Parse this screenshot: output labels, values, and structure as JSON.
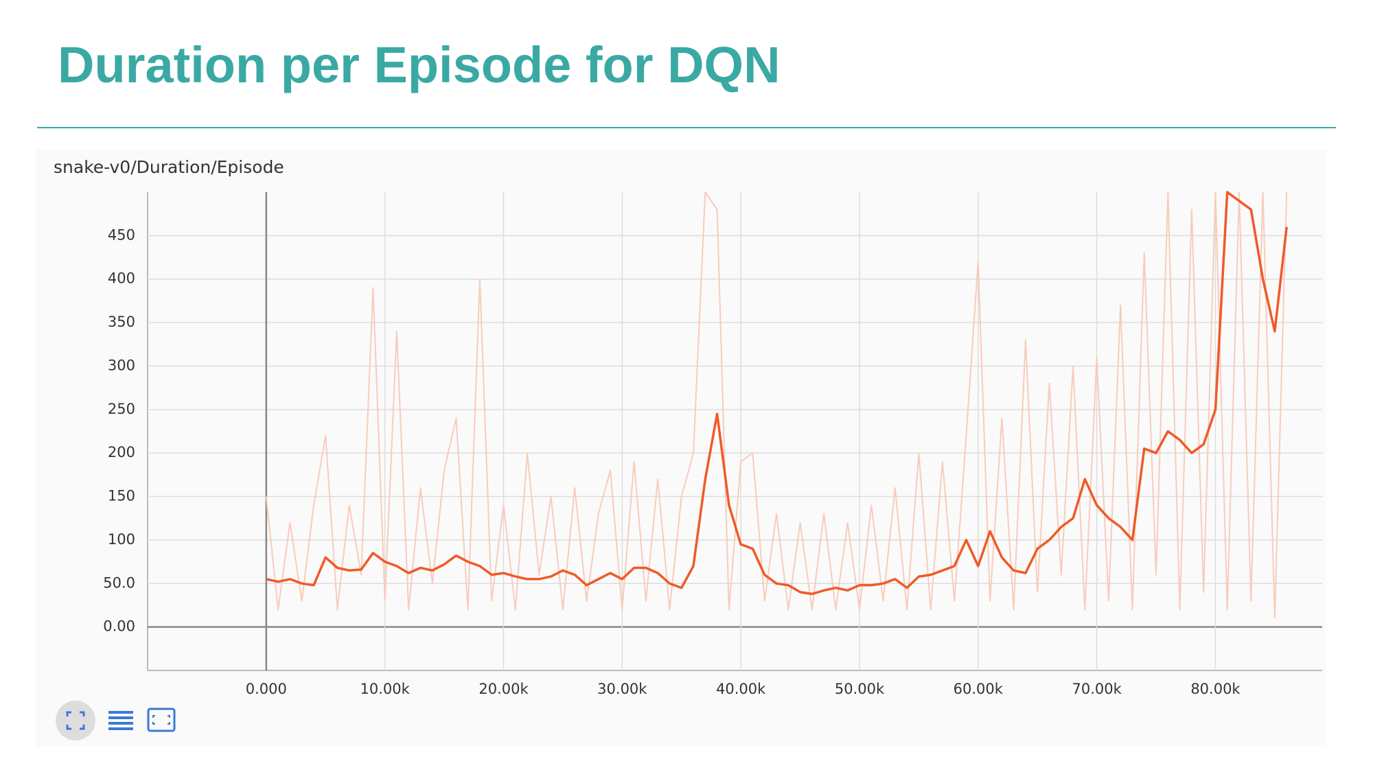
{
  "header": {
    "title": "Duration per Episode for DQN"
  },
  "chart_data": {
    "type": "line",
    "title": "snake-v0/Duration/Episode",
    "x": [
      0,
      1000,
      2000,
      3000,
      4000,
      5000,
      6000,
      7000,
      8000,
      9000,
      10000,
      11000,
      12000,
      13000,
      14000,
      15000,
      16000,
      17000,
      18000,
      19000,
      20000,
      21000,
      22000,
      23000,
      24000,
      25000,
      26000,
      27000,
      28000,
      29000,
      30000,
      31000,
      32000,
      33000,
      34000,
      35000,
      36000,
      37000,
      38000,
      39000,
      40000,
      41000,
      42000,
      43000,
      44000,
      45000,
      46000,
      47000,
      48000,
      49000,
      50000,
      51000,
      52000,
      53000,
      54000,
      55000,
      56000,
      57000,
      58000,
      59000,
      60000,
      61000,
      62000,
      63000,
      64000,
      65000,
      66000,
      67000,
      68000,
      69000,
      70000,
      71000,
      72000,
      73000,
      74000,
      75000,
      76000,
      77000,
      78000,
      79000,
      80000,
      81000,
      82000,
      83000,
      84000,
      85000,
      86000
    ],
    "series": [
      {
        "color": "#f9cbbb",
        "values": [
          150,
          20,
          120,
          30,
          140,
          220,
          20,
          140,
          60,
          390,
          30,
          340,
          20,
          160,
          50,
          180,
          240,
          20,
          400,
          30,
          140,
          20,
          200,
          60,
          150,
          20,
          160,
          30,
          130,
          180,
          20,
          190,
          30,
          170,
          20,
          150,
          200,
          500,
          480,
          20,
          190,
          200,
          30,
          130,
          20,
          120,
          20,
          130,
          20,
          120,
          20,
          140,
          30,
          160,
          20,
          200,
          20,
          190,
          30,
          220,
          420,
          30,
          240,
          20,
          330,
          40,
          280,
          60,
          300,
          20,
          310,
          30,
          370,
          20,
          430,
          60,
          500,
          20,
          480,
          40,
          500,
          20,
          500,
          30,
          500,
          10,
          500
        ]
      },
      {
        "color": "#f05a28",
        "values": [
          55,
          52,
          55,
          50,
          48,
          80,
          68,
          65,
          66,
          85,
          75,
          70,
          62,
          68,
          65,
          72,
          82,
          75,
          70,
          60,
          62,
          58,
          55,
          55,
          58,
          65,
          60,
          48,
          55,
          62,
          55,
          68,
          68,
          62,
          50,
          45,
          70,
          170,
          245,
          140,
          95,
          90,
          60,
          50,
          48,
          40,
          38,
          42,
          45,
          42,
          48,
          48,
          50,
          55,
          45,
          58,
          60,
          65,
          70,
          100,
          70,
          110,
          80,
          65,
          62,
          90,
          100,
          115,
          125,
          170,
          140,
          125,
          115,
          100,
          205,
          200,
          225,
          215,
          200,
          210,
          250,
          500,
          490,
          480,
          400,
          340,
          460
        ]
      }
    ],
    "xlim": [
      -10000,
      89000
    ],
    "ylim": [
      -50,
      500
    ],
    "xticks": [
      {
        "value": 0,
        "label": "0.000"
      },
      {
        "value": 10000,
        "label": "10.00k"
      },
      {
        "value": 20000,
        "label": "20.00k"
      },
      {
        "value": 30000,
        "label": "30.00k"
      },
      {
        "value": 40000,
        "label": "40.00k"
      },
      {
        "value": 50000,
        "label": "50.00k"
      },
      {
        "value": 60000,
        "label": "60.00k"
      },
      {
        "value": 70000,
        "label": "70.00k"
      },
      {
        "value": 80000,
        "label": "80.00k"
      }
    ],
    "yticks": [
      {
        "value": 0,
        "label": "0.00"
      },
      {
        "value": 50,
        "label": "50.0"
      },
      100,
      150,
      200,
      250,
      300,
      350,
      400,
      450
    ],
    "grid": true
  }
}
